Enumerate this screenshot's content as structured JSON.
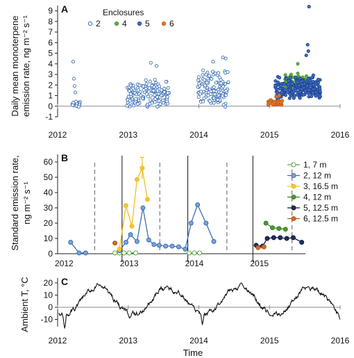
{
  "chart_data": [
    {
      "panel": "A",
      "type": "scatter",
      "ylabel_line1": "Daily mean monoterpene",
      "ylabel_line2": "emission rate, ng m⁻² s⁻¹",
      "xlabel": "",
      "x_ticks": [
        "2012",
        "2013",
        "2014",
        "2015",
        "2016"
      ],
      "y_ticks": [
        "-1",
        "0",
        "1",
        "2",
        "3",
        "4",
        "5",
        "6",
        "7",
        "8",
        "9"
      ],
      "xlim": [
        2012,
        2016
      ],
      "ylim": [
        -1,
        9.5
      ],
      "legend_title": "Enclosures",
      "legend_position": "top",
      "series": [
        {
          "name": "2",
          "color": "#3a6eb5",
          "fill": "#ffffff",
          "segments": [
            {
              "x0": 2012.2,
              "x1": 2012.32,
              "base": 0.15,
              "spread": 0.5,
              "n": 22,
              "extras": [
                [
                  2012.22,
                  4.2
                ],
                [
                  2012.23,
                  2.6
                ],
                [
                  2012.24,
                  1.9
                ],
                [
                  2012.25,
                  1.3
                ]
              ]
            },
            {
              "x0": 2012.98,
              "x1": 2013.58,
              "base": 1.0,
              "spread": 2.4,
              "n": 160,
              "extras": [
                [
                  2013.32,
                  4.1
                ],
                [
                  2013.4,
                  3.8
                ]
              ]
            },
            {
              "x0": 2013.98,
              "x1": 2014.42,
              "base": 1.5,
              "spread": 2.8,
              "n": 120,
              "extras": [
                [
                  2014.34,
                  4.6
                ],
                [
                  2014.38,
                  4.5
                ],
                [
                  2014.2,
                  4.2
                ]
              ]
            }
          ]
        },
        {
          "name": "4",
          "color": "#4a9a2e",
          "fill": "#5cb040",
          "segments": [
            {
              "x0": 2015.18,
              "x1": 2015.55,
              "base": 2.2,
              "spread": 1.6,
              "n": 55,
              "extras": [
                [
                  2015.4,
                  4.0
                ]
              ]
            }
          ]
        },
        {
          "name": "5",
          "color": "#1f3f8f",
          "fill": "#3f6fc0",
          "segments": [
            {
              "x0": 2015.08,
              "x1": 2015.72,
              "base": 1.6,
              "spread": 1.8,
              "n": 200,
              "extras": [
                [
                  2015.56,
                  9.4
                ],
                [
                  2015.54,
                  5.8
                ],
                [
                  2015.55,
                  5.2
                ],
                [
                  2015.52,
                  4.8
                ]
              ]
            }
          ]
        },
        {
          "name": "6",
          "color": "#c75b17",
          "fill": "#e07a2f",
          "segments": [
            {
              "x0": 2014.98,
              "x1": 2015.18,
              "base": 0.3,
              "spread": 0.4,
              "n": 45,
              "extras": [
                [
                  2015.1,
                  0.9
                ],
                [
                  2015.14,
                  1.0
                ]
              ]
            }
          ]
        }
      ]
    },
    {
      "panel": "B",
      "type": "line",
      "ylabel_line1": "Standard emission rate,",
      "ylabel_line2": "ng m⁻² s⁻¹",
      "x_ticks": [
        "2012",
        "2013",
        "2014",
        "2015"
      ],
      "y_ticks": [
        "0",
        "10",
        "20",
        "30",
        "40",
        "50",
        "60"
      ],
      "ylim": [
        0,
        65
      ],
      "legend_position": "right",
      "solid_lines_x": [
        2012.99,
        2014.0,
        2015.0
      ],
      "dashed_lines_x": [
        2012.57,
        2013.57,
        2014.6,
        2015.6
      ],
      "series": [
        {
          "name": "1, 7 m",
          "color": "#5aa843",
          "fill": "#ffffff",
          "points": [
            [
              2012.88,
              0.5
            ],
            [
              2012.95,
              0.5
            ],
            [
              2013.02,
              0.5
            ],
            [
              2013.1,
              0.5
            ],
            [
              2013.2,
              0.5
            ],
            [
              2014.02,
              0.5
            ],
            [
              2014.1,
              0.5
            ],
            [
              2014.18,
              0.5
            ]
          ]
        },
        {
          "name": "2, 12 m",
          "color": "#3a6eb5",
          "fill": "#7da2d4",
          "points": [
            [
              2012.2,
              7.5
            ],
            [
              2012.33,
              0.5
            ],
            [
              2012.43,
              0.5
            ],
            [
              2012.95,
              2.0
            ],
            [
              2013.05,
              7.5
            ],
            [
              2013.12,
              12.5
            ],
            [
              2013.22,
              8.0
            ],
            [
              2013.31,
              30.0
            ],
            [
              2013.4,
              9.0
            ],
            [
              2013.48,
              6.0
            ],
            [
              2013.56,
              5.5
            ],
            [
              2013.66,
              5.0
            ],
            [
              2013.76,
              5.0
            ],
            [
              2013.86,
              4.5
            ],
            [
              2013.96,
              3.0
            ],
            [
              2014.05,
              20.0
            ],
            [
              2014.15,
              32.0
            ],
            [
              2014.28,
              20.0
            ],
            [
              2014.4,
              8.0
            ]
          ]
        },
        {
          "name": "3, 16.5 m",
          "color": "#f0c020",
          "fill": "#f4c430",
          "points": [
            [
              2012.95,
              3.0
            ],
            [
              2013.05,
              31.5
            ],
            [
              2013.14,
              18.0
            ],
            [
              2013.22,
              48.5
            ],
            [
              2013.3,
              56.0
            ],
            [
              2013.38,
              35.5
            ]
          ],
          "error_bar": {
            "x": 2013.3,
            "low": 49.0,
            "high": 63.0
          }
        },
        {
          "name": "4, 12 m",
          "color": "#3f7f28",
          "fill": "#4a9a2e",
          "points": [
            [
              2015.2,
              20.0
            ],
            [
              2015.3,
              17.0
            ],
            [
              2015.4,
              16.5
            ],
            [
              2015.5,
              16.0
            ]
          ]
        },
        {
          "name": "5, 12.5 m",
          "color": "#111a3a",
          "fill": "#1f2f5f",
          "points": [
            [
              2015.05,
              5.5
            ],
            [
              2015.15,
              5.0
            ],
            [
              2015.22,
              10.0
            ],
            [
              2015.32,
              10.5
            ],
            [
              2015.42,
              10.5
            ],
            [
              2015.52,
              10.0
            ],
            [
              2015.62,
              10.5
            ],
            [
              2015.75,
              7.5
            ]
          ]
        },
        {
          "name": "6, 12.5 m",
          "color": "#b55a18",
          "fill": "#d06a25",
          "points": [
            [
              2012.88,
              7.0
            ],
            [
              2015.08,
              4.0
            ],
            [
              2015.17,
              4.5
            ]
          ]
        }
      ]
    },
    {
      "panel": "C",
      "type": "line",
      "ylabel": "Ambient T, °C",
      "xlabel": "Time",
      "x_ticks": [
        "2012",
        "2013",
        "2014",
        "2015",
        "2016"
      ],
      "y_ticks": [
        "-10",
        "0",
        "10",
        "20"
      ],
      "xlim": [
        2012,
        2016
      ],
      "ylim": [
        -16,
        24
      ],
      "color": "#111111",
      "annual_mean": 5.0,
      "annual_amplitude": 11.5,
      "peak_phase": 0.58,
      "cold_dips": [
        [
          2012.1,
          -17.0
        ],
        [
          2013.02,
          -9.0
        ],
        [
          2014.05,
          -14.0
        ],
        [
          2015.02,
          -7.0
        ],
        [
          2016.0,
          -10.0
        ]
      ],
      "warm_peaks": [
        [
          2012.58,
          18.0
        ],
        [
          2013.55,
          17.5
        ],
        [
          2014.6,
          20.0
        ],
        [
          2015.55,
          17.0
        ]
      ]
    }
  ]
}
